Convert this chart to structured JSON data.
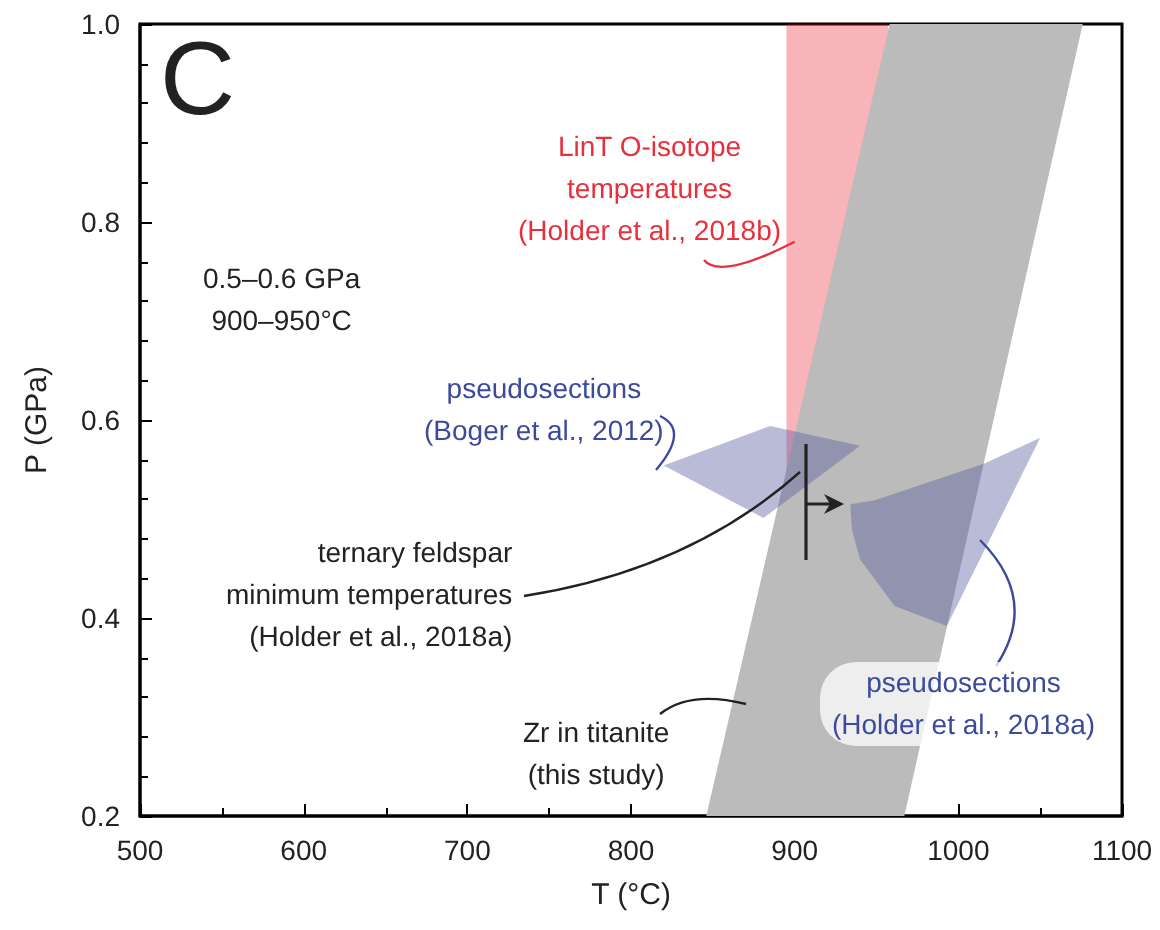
{
  "chart_data": {
    "type": "area",
    "xlabel": "T (°C)",
    "ylabel": "P (GPa)",
    "xlim": [
      500,
      1100
    ],
    "xticks": [
      500,
      600,
      700,
      800,
      900,
      1000,
      1100
    ],
    "ylim": [
      0.2,
      1.0
    ],
    "yticks": [
      0.2,
      0.4,
      0.6,
      0.8,
      {
        "value": 1.0,
        "label": "1.0"
      }
    ],
    "series": [
      {
        "color": "#bbbbbb",
        "x": [
          846,
          967,
          1076,
          958
        ],
        "values": [
          0.2,
          0.2,
          1.0,
          1.0
        ]
      },
      {
        "color": "#5a5fa0",
        "x": [
          820,
          885,
          940,
          881
        ],
        "values": [
          0.554,
          0.594,
          0.574,
          0.501
        ]
      },
      {
        "color": "#5a5fa0",
        "x": [
          934,
          949,
          1016,
          1050,
          993,
          961,
          940,
          935
        ],
        "values": [
          0.515,
          0.519,
          0.556,
          0.582,
          0.392,
          0.412,
          0.459,
          0.489
        ]
      }
    ],
    "bands": [
      {
        "axis": "x",
        "from": 895,
        "to": 957,
        "color": "#e80d1a"
      }
    ],
    "annotations": [
      "C",
      "0.5–0.6 GPa\n900–950°C",
      {
        "text": "LinT O-isotope\ntemperatures\n(Holder et al., 2018b)",
        "x": 900,
        "y": 0.78
      },
      "pseudosections\n(Boger et al., 2012)",
      "ternary feldspar\nminimum temperatures\n(Holder et al., 2018a)",
      "pseudosections\n(Holder et al., 2018a)",
      "Zr in titanite\n(this study)"
    ]
  }
}
